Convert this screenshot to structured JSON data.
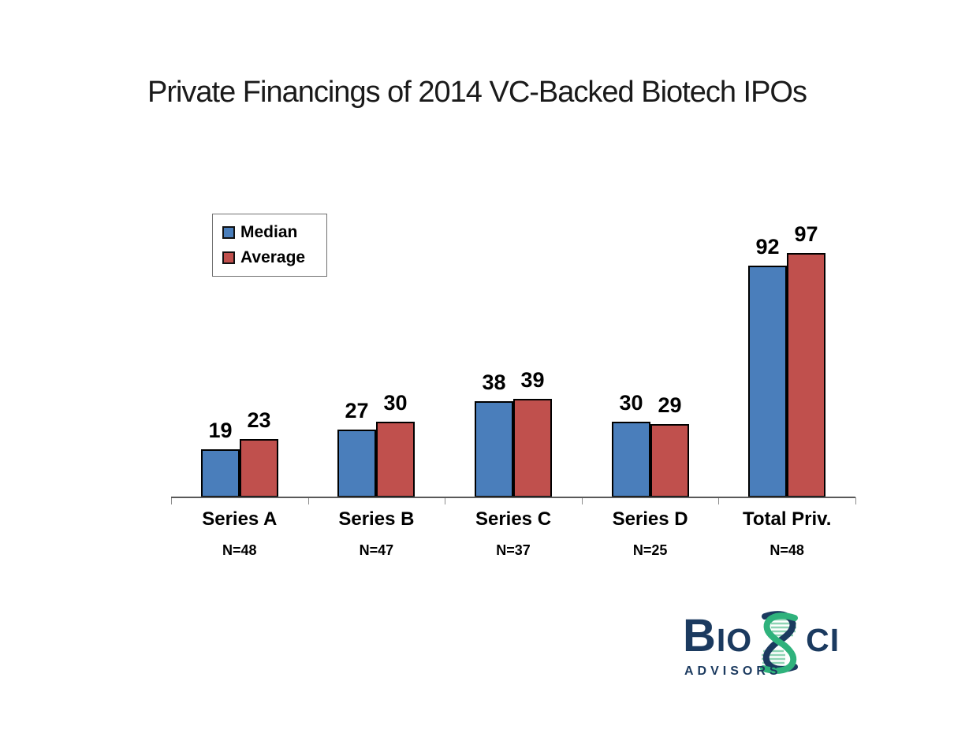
{
  "title": "Private Financings of 2014 VC-Backed Biotech IPOs",
  "legend": {
    "items": [
      {
        "label": "Median",
        "color": "#4A7EBB"
      },
      {
        "label": "Average",
        "color": "#C0504D"
      }
    ]
  },
  "chart_data": {
    "type": "bar",
    "categories": [
      "Series A",
      "Series B",
      "Series C",
      "Series D",
      "Total Priv."
    ],
    "category_sublabels": [
      "N=48",
      "N=47",
      "N=37",
      "N=25",
      "N=48"
    ],
    "series": [
      {
        "name": "Median",
        "color": "#4A7EBB",
        "values": [
          19,
          27,
          38,
          30,
          92
        ]
      },
      {
        "name": "Average",
        "color": "#C0504D",
        "values": [
          23,
          30,
          39,
          29,
          97
        ]
      }
    ],
    "title": "Private Financings of 2014 VC-Backed Biotech IPOs",
    "xlabel": "",
    "ylabel": "",
    "ylim": [
      0,
      105
    ],
    "grid": false,
    "value_labels": true,
    "legend_position": "upper-left-inside",
    "bar_border_color": "#000000",
    "axis_color": "#595959"
  },
  "logo": {
    "word_left": "Bio",
    "word_right": "ci",
    "subtext": "ADVISORS",
    "navy": "#1b3a5f",
    "green": "#2fb27c",
    "light_green": "#8ed4b4"
  }
}
